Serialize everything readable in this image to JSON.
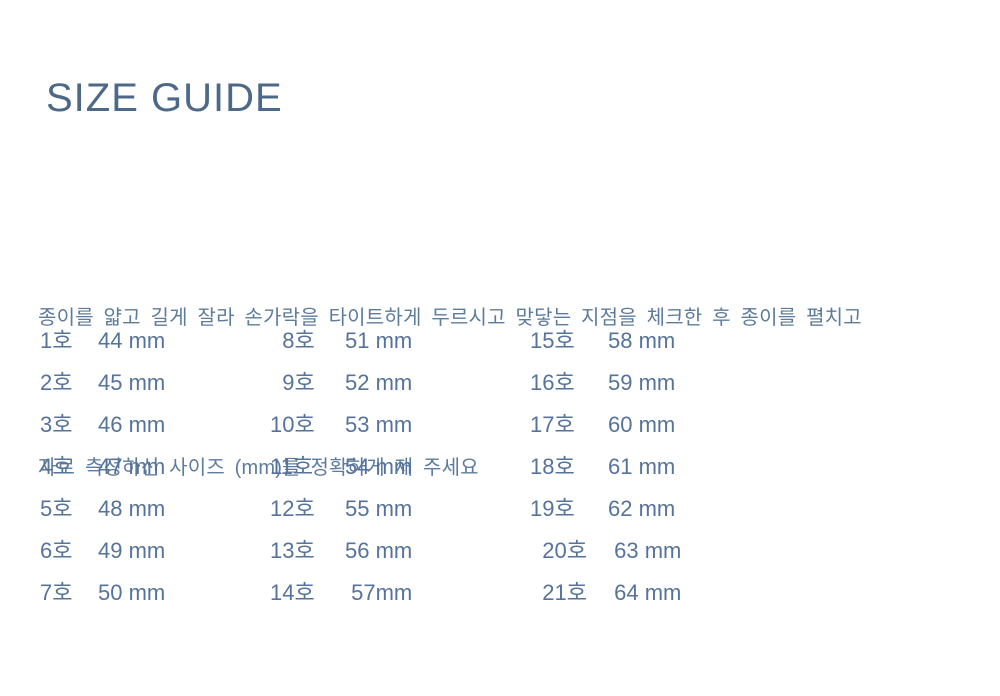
{
  "title": "SIZE GUIDE",
  "intro": {
    "line1": "종이를 얇고 길게 잘라 손가락을 타이트하게 두르시고 맞닿는 지점을 체크한 후 종이를 펼치고",
    "line2": "자로 측정하신 사이즈 (mm)를 정확하게 재 주세요"
  },
  "table": {
    "unit": "mm",
    "columns": [
      {
        "rows": [
          {
            "size": "1호",
            "value": "44 mm"
          },
          {
            "size": "2호",
            "value": "45 mm"
          },
          {
            "size": "3호",
            "value": "46 mm"
          },
          {
            "size": "4호",
            "value": "47 mm"
          },
          {
            "size": "5호",
            "value": "48 mm"
          },
          {
            "size": "6호",
            "value": "49 mm"
          },
          {
            "size": "7호",
            "value": "50 mm"
          }
        ]
      },
      {
        "rows": [
          {
            "size": "  8호",
            "value": "51 mm"
          },
          {
            "size": "  9호",
            "value": "52 mm"
          },
          {
            "size": "10호",
            "value": "53 mm"
          },
          {
            "size": "11호",
            "value": "54 mm"
          },
          {
            "size": "12호",
            "value": "55 mm"
          },
          {
            "size": "13호",
            "value": "56 mm"
          },
          {
            "size": "14호",
            "value": " 57mm"
          }
        ]
      },
      {
        "rows": [
          {
            "size": "15호",
            "value": "58 mm"
          },
          {
            "size": "16호",
            "value": "59 mm"
          },
          {
            "size": "17호",
            "value": "60 mm"
          },
          {
            "size": "18호",
            "value": "61 mm"
          },
          {
            "size": "19호",
            "value": "62 mm"
          },
          {
            "size": "  20호",
            "value": " 63 mm"
          },
          {
            "size": "  21호",
            "value": " 64 mm"
          }
        ]
      }
    ]
  },
  "colors": {
    "background": "#ffffff",
    "title_text": "#4d6987",
    "body_text": "#5d7c9c",
    "table_text": "#56739b"
  }
}
